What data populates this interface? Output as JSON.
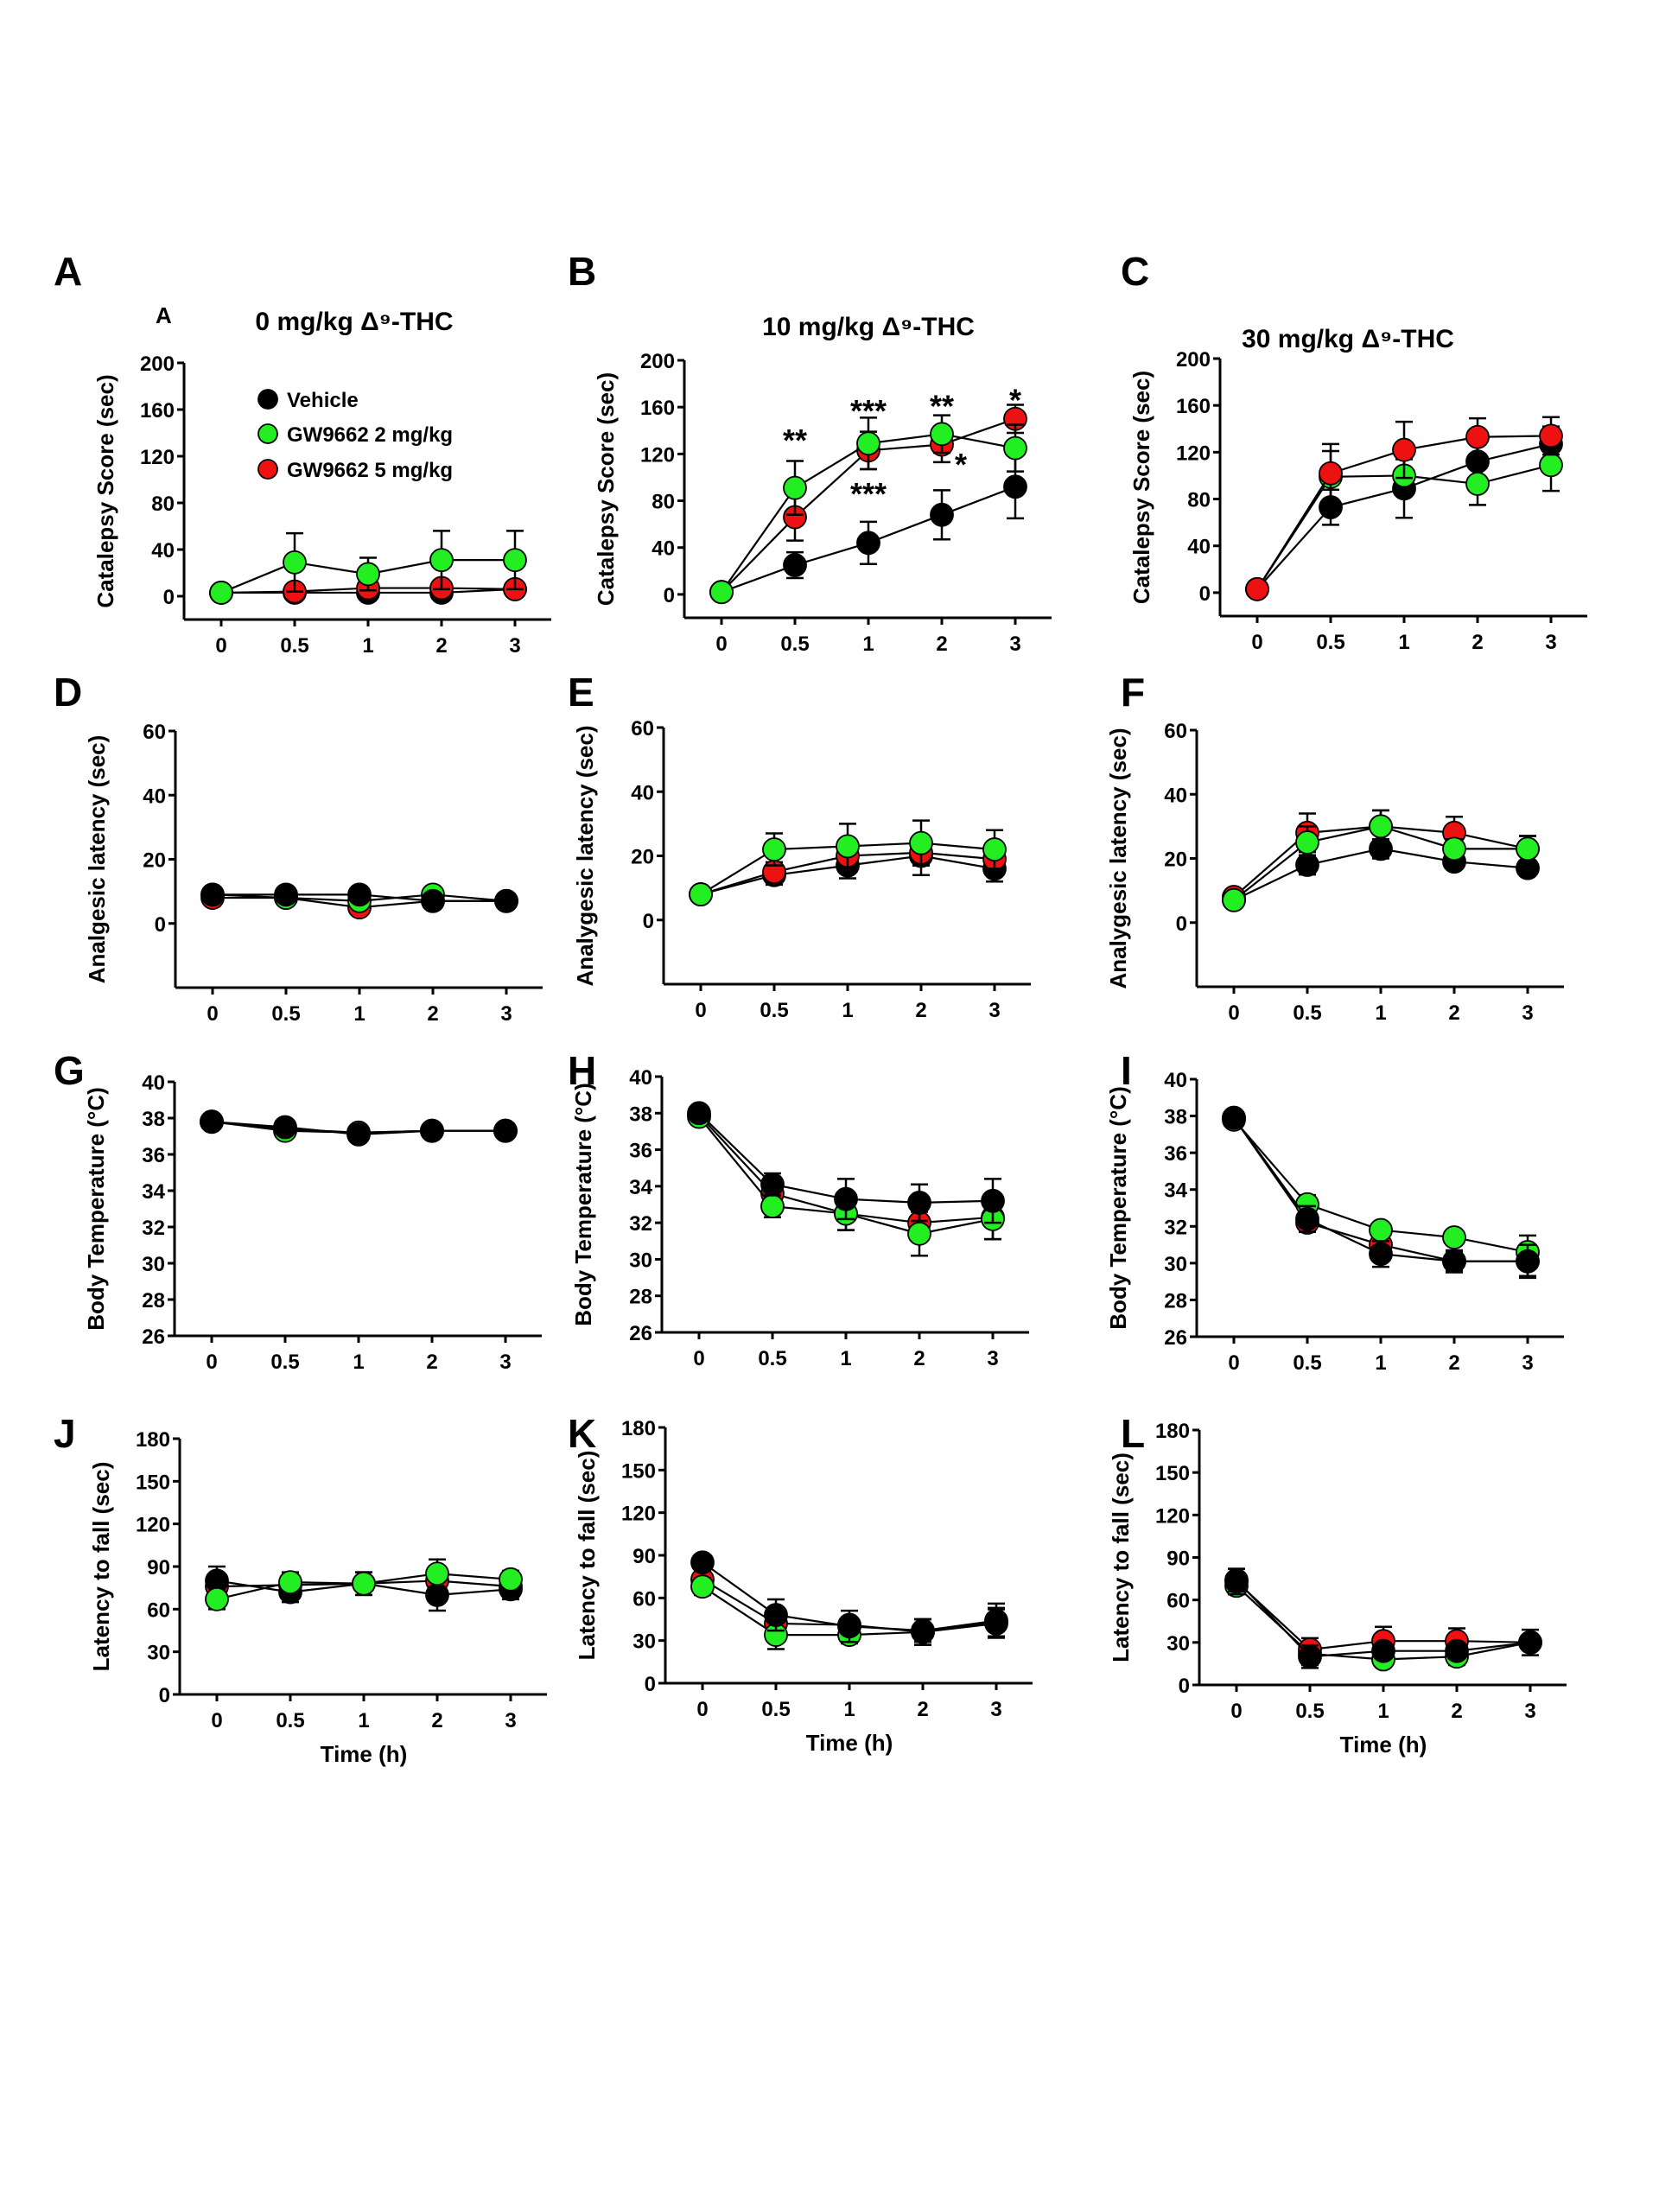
{
  "figure": {
    "legend": {
      "entries": [
        {
          "label": "Vehicle",
          "color": "#000000"
        },
        {
          "label": "GW9662 2 mg/kg",
          "color": "#22ee22"
        },
        {
          "label": "GW9662 5 mg/kg",
          "color": "#ee1111"
        }
      ]
    },
    "column_titles": [
      "0 mg/kg Δ⁹-THC",
      "10 mg/kg Δ⁹-THC",
      "30 mg/kg Δ⁹-THC"
    ],
    "small_letter": "A",
    "xlabel": "Time (h)"
  },
  "chart_data": [
    {
      "panel": "A",
      "type": "line",
      "title": "0 mg/kg Δ⁹-THC",
      "xlabel": "",
      "ylabel": "Catalepsy Score (sec)",
      "categories": [
        "0",
        "0.5",
        "1",
        "2",
        "3"
      ],
      "ylim": [
        -20,
        200
      ],
      "yticks": [
        0,
        40,
        80,
        120,
        160,
        200
      ],
      "legend": "top-left",
      "series": [
        {
          "name": "Vehicle",
          "values": [
            3,
            3,
            3,
            3,
            6
          ],
          "err": [
            0,
            0,
            0,
            0,
            0
          ]
        },
        {
          "name": "GW9662 5 mg/kg",
          "values": [
            3,
            4,
            7,
            7,
            6
          ],
          "err": [
            0,
            0,
            0,
            0,
            0
          ]
        },
        {
          "name": "GW9662 2 mg/kg",
          "values": [
            3,
            29,
            19,
            31,
            31
          ],
          "err": [
            0,
            25,
            14,
            25,
            25
          ]
        }
      ],
      "annotations": []
    },
    {
      "panel": "B",
      "type": "line",
      "title": "10 mg/kg Δ⁹-THC",
      "xlabel": "",
      "ylabel": "Catalepsy Score (sec)",
      "categories": [
        "0",
        "0.5",
        "1",
        "2",
        "3"
      ],
      "ylim": [
        -20,
        200
      ],
      "yticks": [
        0,
        40,
        80,
        120,
        160,
        200
      ],
      "series": [
        {
          "name": "Vehicle",
          "values": [
            2,
            25,
            44,
            68,
            92
          ],
          "err": [
            0,
            11,
            18,
            21,
            27
          ]
        },
        {
          "name": "GW9662 5 mg/kg",
          "values": [
            2,
            66,
            123,
            128,
            150
          ],
          "err": [
            0,
            20,
            16,
            15,
            12
          ]
        },
        {
          "name": "GW9662 2 mg/kg",
          "values": [
            2,
            91,
            129,
            137,
            125
          ],
          "err": [
            0,
            23,
            22,
            16,
            20
          ]
        }
      ],
      "annotations": [
        {
          "text": "**",
          "x": "0.5",
          "y": 133
        },
        {
          "text": "***",
          "x": "1",
          "y": 158
        },
        {
          "text": "***",
          "x": "1",
          "y": 87
        },
        {
          "text": "**",
          "x": "2",
          "y": 162
        },
        {
          "text": "*",
          "x": "2",
          "y": 112
        },
        {
          "text": "*",
          "x": "3",
          "y": 167
        }
      ]
    },
    {
      "panel": "C",
      "type": "line",
      "title": "30 mg/kg Δ⁹-THC",
      "xlabel": "",
      "ylabel": "Catalepsy Score (sec)",
      "categories": [
        "0",
        "0.5",
        "1",
        "2",
        "3"
      ],
      "ylim": [
        -20,
        200
      ],
      "yticks": [
        0,
        40,
        80,
        120,
        160,
        200
      ],
      "series": [
        {
          "name": "Vehicle",
          "values": [
            3,
            73,
            89,
            112,
            127
          ],
          "err": [
            0,
            15,
            25,
            15,
            15
          ]
        },
        {
          "name": "GW9662 2 mg/kg",
          "values": [
            3,
            99,
            100,
            93,
            109
          ],
          "err": [
            0,
            22,
            15,
            18,
            22
          ]
        },
        {
          "name": "GW9662 5 mg/kg",
          "values": [
            3,
            102,
            122,
            133,
            134
          ],
          "err": [
            0,
            25,
            24,
            16,
            16
          ]
        }
      ],
      "annotations": []
    },
    {
      "panel": "D",
      "type": "line",
      "title": "",
      "xlabel": "",
      "ylabel": "Analgesic latency (sec)",
      "categories": [
        "0",
        "0.5",
        "1",
        "2",
        "3"
      ],
      "ylim": [
        -20,
        60
      ],
      "yticks": [
        0,
        20,
        40,
        60
      ],
      "series": [
        {
          "name": "GW9662 5 mg/kg",
          "values": [
            8,
            8,
            5,
            7,
            7
          ],
          "err": [
            0,
            0,
            0,
            0,
            0
          ]
        },
        {
          "name": "GW9662 2 mg/kg",
          "values": [
            9,
            8,
            7,
            9,
            7
          ],
          "err": [
            0,
            0,
            0,
            0,
            0
          ]
        },
        {
          "name": "Vehicle",
          "values": [
            9,
            9,
            9,
            7,
            7
          ],
          "err": [
            0,
            0,
            0,
            0,
            0
          ]
        }
      ],
      "annotations": []
    },
    {
      "panel": "E",
      "type": "line",
      "title": "",
      "xlabel": "",
      "ylabel": "Analygesic latency (sec)",
      "categories": [
        "0",
        "0.5",
        "1",
        "2",
        "3"
      ],
      "ylim": [
        -20,
        60
      ],
      "yticks": [
        0,
        20,
        40,
        60
      ],
      "series": [
        {
          "name": "Vehicle",
          "values": [
            8,
            14,
            17,
            20,
            16
          ],
          "err": [
            0,
            3,
            4,
            6,
            4
          ]
        },
        {
          "name": "GW9662 5 mg/kg",
          "values": [
            8,
            15,
            20,
            21,
            19
          ],
          "err": [
            0,
            3,
            4,
            4,
            4
          ]
        },
        {
          "name": "GW9662 2 mg/kg",
          "values": [
            8,
            22,
            23,
            24,
            22
          ],
          "err": [
            0,
            5,
            7,
            7,
            6
          ]
        }
      ],
      "annotations": []
    },
    {
      "panel": "F",
      "type": "line",
      "title": "",
      "xlabel": "",
      "ylabel": "Analygesic latency (sec)",
      "categories": [
        "0",
        "0.5",
        "1",
        "2",
        "3"
      ],
      "ylim": [
        -20,
        60
      ],
      "yticks": [
        0,
        20,
        40,
        60
      ],
      "series": [
        {
          "name": "Vehicle",
          "values": [
            7,
            18,
            23,
            19,
            17
          ],
          "err": [
            0,
            3,
            3,
            2,
            2
          ]
        },
        {
          "name": "GW9662 5 mg/kg",
          "values": [
            8,
            28,
            30,
            28,
            23
          ],
          "err": [
            0,
            6,
            5,
            5,
            4
          ]
        },
        {
          "name": "GW9662 2 mg/kg",
          "values": [
            7,
            25,
            30,
            23,
            23
          ],
          "err": [
            0,
            5,
            5,
            3,
            4
          ]
        }
      ],
      "annotations": []
    },
    {
      "panel": "G",
      "type": "line",
      "title": "",
      "xlabel": "",
      "ylabel": "Body Temperature (°C)",
      "categories": [
        "0",
        "0.5",
        "1",
        "2",
        "3"
      ],
      "ylim": [
        26,
        40
      ],
      "yticks": [
        26,
        28,
        30,
        32,
        34,
        36,
        38,
        40
      ],
      "series": [
        {
          "name": "GW9662 5 mg/kg",
          "values": [
            37.8,
            37.4,
            37.2,
            37.3,
            37.3
          ],
          "err": [
            0,
            0,
            0,
            0,
            0
          ]
        },
        {
          "name": "GW9662 2 mg/kg",
          "values": [
            37.8,
            37.3,
            37.2,
            37.3,
            37.3
          ],
          "err": [
            0,
            0,
            0,
            0,
            0
          ]
        },
        {
          "name": "Vehicle",
          "values": [
            37.8,
            37.5,
            37.1,
            37.3,
            37.3
          ],
          "err": [
            0,
            0,
            0,
            0,
            0
          ]
        }
      ],
      "annotations": []
    },
    {
      "panel": "H",
      "type": "line",
      "title": "",
      "xlabel": "",
      "ylabel": "Body Temperature (°C)",
      "categories": [
        "0",
        "0.5",
        "1",
        "2",
        "3"
      ],
      "ylim": [
        26,
        40
      ],
      "yticks": [
        26,
        28,
        30,
        32,
        34,
        36,
        38,
        40
      ],
      "series": [
        {
          "name": "GW9662 5 mg/kg",
          "values": [
            37.9,
            33.6,
            32.5,
            32.0,
            32.3
          ],
          "err": [
            0,
            0.9,
            0.9,
            0.9,
            1.2
          ]
        },
        {
          "name": "GW9662 2 mg/kg",
          "values": [
            37.8,
            32.9,
            32.5,
            31.4,
            32.2
          ],
          "err": [
            0,
            0.6,
            0.9,
            1.2,
            1.1
          ]
        },
        {
          "name": "Vehicle",
          "values": [
            38.0,
            34.1,
            33.3,
            33.1,
            33.2
          ],
          "err": [
            0,
            0.6,
            1.1,
            1.0,
            1.2
          ]
        }
      ],
      "annotations": []
    },
    {
      "panel": "I",
      "type": "line",
      "title": "",
      "xlabel": "",
      "ylabel": "Body Temperature (°C)",
      "categories": [
        "0",
        "0.5",
        "1",
        "2",
        "3"
      ],
      "ylim": [
        26,
        40
      ],
      "yticks": [
        26,
        28,
        30,
        32,
        34,
        36,
        38,
        40
      ],
      "series": [
        {
          "name": "GW9662 5 mg/kg",
          "values": [
            37.9,
            32.2,
            31.0,
            30.1,
            30.1
          ],
          "err": [
            0,
            0.5,
            0.6,
            0.5,
            0.8
          ]
        },
        {
          "name": "GW9662 2 mg/kg",
          "values": [
            37.8,
            33.2,
            31.8,
            31.4,
            30.6
          ],
          "err": [
            0,
            0.5,
            0.4,
            0.4,
            0.9
          ]
        },
        {
          "name": "Vehicle",
          "values": [
            37.9,
            32.4,
            30.5,
            30.1,
            30.1
          ],
          "err": [
            0,
            0.7,
            0.7,
            0.6,
            0.9
          ]
        }
      ],
      "annotations": []
    },
    {
      "panel": "J",
      "type": "line",
      "title": "",
      "xlabel": "Time (h)",
      "ylabel": "Latency to fall (sec)",
      "categories": [
        "0",
        "0.5",
        "1",
        "2",
        "3"
      ],
      "ylim": [
        0,
        180
      ],
      "yticks": [
        0,
        30,
        60,
        90,
        120,
        150,
        180
      ],
      "series": [
        {
          "name": "GW9662 5 mg/kg",
          "values": [
            76,
            77,
            78,
            80,
            76
          ],
          "err": [
            0,
            0,
            0,
            0,
            0
          ]
        },
        {
          "name": "Vehicle",
          "values": [
            80,
            72,
            78,
            70,
            74
          ],
          "err": [
            10,
            7,
            8,
            11,
            7
          ]
        },
        {
          "name": "GW9662 2 mg/kg",
          "values": [
            67,
            79,
            78,
            85,
            81
          ],
          "err": [
            7,
            7,
            8,
            10,
            6
          ]
        }
      ],
      "annotations": []
    },
    {
      "panel": "K",
      "type": "line",
      "title": "",
      "xlabel": "Time (h)",
      "ylabel": "Latency to fall (sec)",
      "categories": [
        "0",
        "0.5",
        "1",
        "2",
        "3"
      ],
      "ylim": [
        0,
        180
      ],
      "yticks": [
        0,
        30,
        60,
        90,
        120,
        150,
        180
      ],
      "series": [
        {
          "name": "GW9662 5 mg/kg",
          "values": [
            73,
            42,
            41,
            36,
            42
          ],
          "err": [
            0,
            0,
            0,
            9,
            10
          ]
        },
        {
          "name": "GW9662 2 mg/kg",
          "values": [
            68,
            34,
            34,
            36,
            43
          ],
          "err": [
            6,
            10,
            6,
            9,
            10
          ]
        },
        {
          "name": "Vehicle",
          "values": [
            85,
            48,
            40,
            37,
            44
          ],
          "err": [
            0,
            11,
            11,
            8,
            12
          ]
        }
      ],
      "annotations": []
    },
    {
      "panel": "L",
      "type": "line",
      "title": "",
      "xlabel": "Time (h)",
      "ylabel": "Latency to fall (sec)",
      "categories": [
        "0",
        "0.5",
        "1",
        "2",
        "3"
      ],
      "ylim": [
        0,
        180
      ],
      "yticks": [
        0,
        30,
        60,
        90,
        120,
        150,
        180
      ],
      "series": [
        {
          "name": "GW9662 2 mg/kg",
          "values": [
            70,
            22,
            18,
            20,
            30
          ],
          "err": [
            0,
            8,
            0,
            6,
            0
          ]
        },
        {
          "name": "GW9662 5 mg/kg",
          "values": [
            73,
            25,
            31,
            31,
            30
          ],
          "err": [
            9,
            8,
            10,
            9,
            0
          ]
        },
        {
          "name": "Vehicle",
          "values": [
            74,
            20,
            24,
            24,
            30
          ],
          "err": [
            8,
            8,
            0,
            0,
            9
          ]
        }
      ],
      "annotations": []
    }
  ]
}
